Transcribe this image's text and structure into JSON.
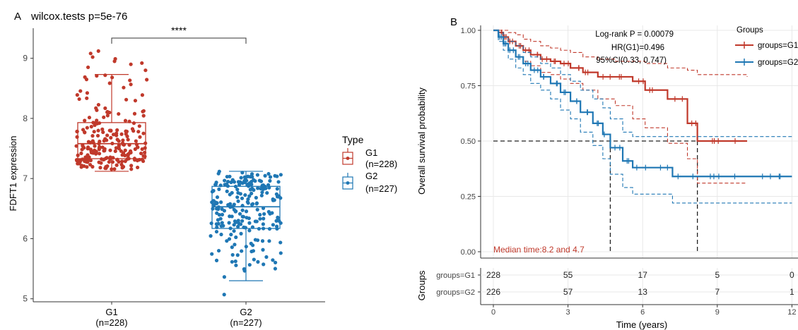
{
  "colors": {
    "g1": "#c0392b",
    "g2": "#1f77b4",
    "axis": "#333333",
    "grid": "#e8e8e8",
    "median_text": "#c0392b"
  },
  "panel_a": {
    "label": "A",
    "title": "wilcox.tests p=5e-76",
    "significance": "****",
    "legend_title": "Type",
    "legend_items": [
      {
        "name": "G1",
        "n": "(n=228)"
      },
      {
        "name": "G2",
        "n": "(n=227)"
      }
    ]
  },
  "panel_b": {
    "label": "B",
    "stats": {
      "logrank": "Log-rank P = 0.00079",
      "hr": "HR(G1)=0.496",
      "ci": "95%CI(0.33, 0.747)"
    },
    "legend_title": "Groups",
    "legend_items": [
      "groups=G1",
      "groups=G2"
    ],
    "median_text": "Median time:8.2 and 4.7",
    "risk_table": {
      "ylabel": "Groups",
      "rows": [
        {
          "label": "groups=G1",
          "values": [
            "228",
            "55",
            "17",
            "5",
            "0"
          ]
        },
        {
          "label": "groups=G2",
          "values": [
            "226",
            "57",
            "13",
            "7",
            "1"
          ]
        }
      ]
    }
  },
  "chart_data": [
    {
      "type": "box",
      "title": "wilcox.tests p=5e-76",
      "xlabel": "",
      "ylabel": "FDFT1 expression",
      "categories": [
        "G1\n(n=228)",
        "G2\n(n=227)"
      ],
      "yticks": [
        "5",
        "6",
        "7",
        "8",
        "9"
      ],
      "ylim": [
        4.95,
        9.5
      ],
      "boxes": [
        {
          "name": "G1",
          "n": 228,
          "min": 7.12,
          "q1": 7.33,
          "median": 7.58,
          "q3": 7.93,
          "max": 8.73,
          "outliers": [
            8.85,
            8.92,
            8.95,
            9.02,
            9.08,
            9.12,
            8.99,
            8.9,
            8.8
          ]
        },
        {
          "name": "G2",
          "n": 227,
          "min": 5.3,
          "q1": 6.17,
          "median": 6.53,
          "q3": 6.87,
          "max": 7.12,
          "outliers": [
            5.07
          ]
        }
      ],
      "legend": "right"
    },
    {
      "type": "line",
      "subtype": "kaplan-meier",
      "xlabel": "Time (years)",
      "ylabel": "Overall survival probability",
      "xticks": [
        "0",
        "3",
        "6",
        "9",
        "12"
      ],
      "yticks": [
        "0.00",
        "0.25",
        "0.50",
        "0.75",
        "1.00"
      ],
      "xlim": [
        0,
        12
      ],
      "ylim": [
        0,
        1
      ],
      "legend": "top-right",
      "series": [
        {
          "name": "groups=G1",
          "x": [
            0,
            0.2,
            0.4,
            0.6,
            0.9,
            1.2,
            1.5,
            1.9,
            2.3,
            2.7,
            3.1,
            3.6,
            4.2,
            4.9,
            5.6,
            6.1,
            7.0,
            7.8,
            8.2,
            10.2
          ],
          "y": [
            1.0,
            0.99,
            0.97,
            0.95,
            0.93,
            0.91,
            0.89,
            0.87,
            0.86,
            0.85,
            0.83,
            0.81,
            0.79,
            0.79,
            0.77,
            0.73,
            0.69,
            0.58,
            0.5,
            0.5
          ],
          "upper": [
            1.0,
            1.0,
            1.0,
            0.99,
            0.98,
            0.96,
            0.95,
            0.93,
            0.92,
            0.91,
            0.9,
            0.88,
            0.87,
            0.86,
            0.86,
            0.85,
            0.83,
            0.82,
            0.8,
            0.79
          ],
          "lower": [
            1.0,
            0.97,
            0.94,
            0.91,
            0.88,
            0.86,
            0.84,
            0.81,
            0.8,
            0.78,
            0.76,
            0.73,
            0.69,
            0.66,
            0.6,
            0.56,
            0.49,
            0.42,
            0.31,
            0.31
          ]
        },
        {
          "name": "groups=G2",
          "x": [
            0,
            0.2,
            0.4,
            0.6,
            0.9,
            1.2,
            1.5,
            1.9,
            2.3,
            2.7,
            3.1,
            3.5,
            4.0,
            4.4,
            4.7,
            5.2,
            5.6,
            6.5,
            7.2,
            8.2,
            10.5,
            12.0
          ],
          "y": [
            1.0,
            0.97,
            0.94,
            0.91,
            0.88,
            0.85,
            0.82,
            0.79,
            0.76,
            0.72,
            0.68,
            0.63,
            0.58,
            0.53,
            0.47,
            0.41,
            0.38,
            0.38,
            0.34,
            0.34,
            0.34,
            0.34
          ],
          "upper": [
            1.0,
            0.99,
            0.97,
            0.95,
            0.93,
            0.9,
            0.88,
            0.85,
            0.83,
            0.8,
            0.77,
            0.73,
            0.69,
            0.65,
            0.6,
            0.54,
            0.52,
            0.52,
            0.52,
            0.52,
            0.52,
            0.52
          ],
          "lower": [
            1.0,
            0.95,
            0.91,
            0.87,
            0.83,
            0.8,
            0.76,
            0.73,
            0.69,
            0.64,
            0.6,
            0.54,
            0.48,
            0.42,
            0.35,
            0.29,
            0.26,
            0.26,
            0.22,
            0.22,
            0.22,
            0.22
          ]
        }
      ],
      "median_lines": [
        {
          "x": 4.7
        },
        {
          "x": 8.2
        }
      ],
      "median_level": 0.5
    }
  ]
}
